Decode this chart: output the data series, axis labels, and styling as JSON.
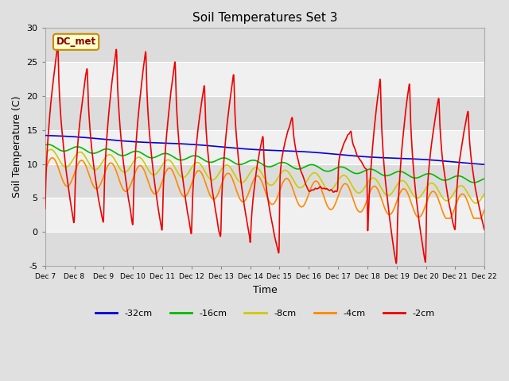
{
  "title": "Soil Temperatures Set 3",
  "xlabel": "Time",
  "ylabel": "Soil Temperature (C)",
  "ylim": [
    -5,
    30
  ],
  "yticks": [
    -5,
    0,
    5,
    10,
    15,
    20,
    25,
    30
  ],
  "annotation_text": "DC_met",
  "annotation_color": "#8B0000",
  "series_colors": [
    "#0000DD",
    "#00BB00",
    "#CCCC00",
    "#FF8800",
    "#EE0000"
  ],
  "legend_entries": [
    "-32cm",
    "-16cm",
    "-8cm",
    "-4cm",
    "-2cm"
  ],
  "legend_colors": [
    "#0000DD",
    "#00BB00",
    "#CCCC00",
    "#FF8800",
    "#EE0000"
  ],
  "xtick_labels": [
    "Dec 7",
    "Dec 8",
    "Dec 9",
    "Dec 10",
    "Dec 11",
    "Dec 12",
    "Dec 13",
    "Dec 14",
    "Dec 15",
    "Dec 16",
    "Dec 17",
    "Dec 18",
    "Dec 19",
    "Dec 20",
    "Dec 21",
    "Dec 22"
  ],
  "num_days": 15,
  "ppd": 144,
  "background_light": "#F0F0F0",
  "background_dark": "#DCDCDC",
  "fig_bg": "#E0E0E0"
}
